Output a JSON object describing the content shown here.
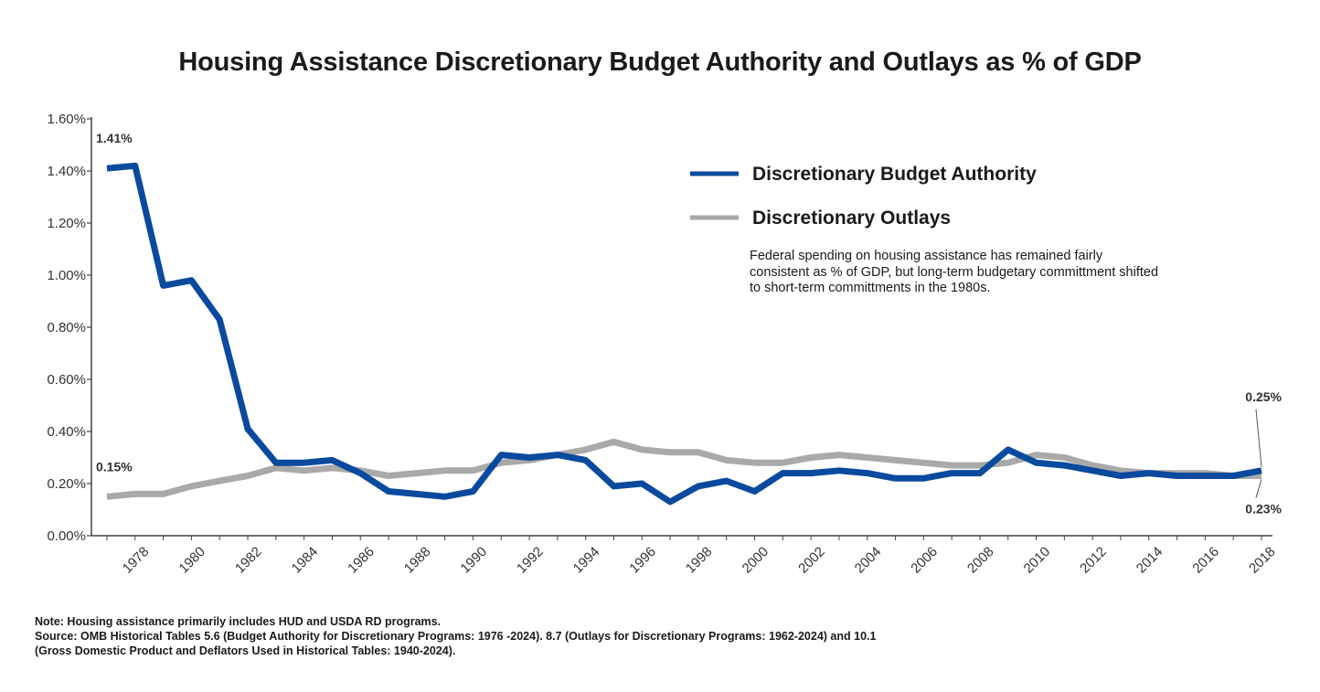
{
  "chart_data": {
    "type": "line",
    "title": "Housing Assistance Discretionary Budget Authority and Outlays as % of GDP",
    "x": [
      1977,
      1978,
      1979,
      1980,
      1981,
      1982,
      1983,
      1984,
      1985,
      1986,
      1987,
      1988,
      1989,
      1990,
      1991,
      1992,
      1993,
      1994,
      1995,
      1996,
      1997,
      1998,
      1999,
      2000,
      2001,
      2002,
      2003,
      2004,
      2005,
      2006,
      2007,
      2008,
      2009,
      2010,
      2011,
      2012,
      2013,
      2014,
      2015,
      2016,
      2017,
      2018
    ],
    "x_tick_labels": [
      "1978",
      "1980",
      "1982",
      "1984",
      "1986",
      "1988",
      "1990",
      "1992",
      "1994",
      "1996",
      "1998",
      "2000",
      "2002",
      "2004",
      "2006",
      "2008",
      "2010",
      "2012",
      "2014",
      "2016",
      "2018"
    ],
    "y_tick_labels": [
      "0.00%",
      "0.20%",
      "0.40%",
      "0.60%",
      "0.80%",
      "1.00%",
      "1.20%",
      "1.40%",
      "1.60%"
    ],
    "ylim": [
      0,
      1.6
    ],
    "series": [
      {
        "name": "Discretionary Budget Authority",
        "color": "#0a4a9e",
        "values": [
          1.41,
          1.42,
          0.96,
          0.98,
          0.83,
          0.41,
          0.28,
          0.28,
          0.29,
          0.24,
          0.17,
          0.16,
          0.15,
          0.17,
          0.31,
          0.3,
          0.31,
          0.29,
          0.19,
          0.2,
          0.13,
          0.19,
          0.21,
          0.17,
          0.24,
          0.24,
          0.25,
          0.24,
          0.22,
          0.22,
          0.24,
          0.24,
          0.33,
          0.28,
          0.27,
          0.25,
          0.23,
          0.24,
          0.23,
          0.23,
          0.23,
          0.25
        ]
      },
      {
        "name": "Discretionary Outlays",
        "color": "#a9a9a9",
        "values": [
          0.15,
          0.16,
          0.16,
          0.19,
          0.21,
          0.23,
          0.26,
          0.25,
          0.26,
          0.25,
          0.23,
          0.24,
          0.25,
          0.25,
          0.28,
          0.29,
          0.31,
          0.33,
          0.36,
          0.33,
          0.32,
          0.32,
          0.29,
          0.28,
          0.28,
          0.3,
          0.31,
          0.3,
          0.29,
          0.28,
          0.27,
          0.27,
          0.28,
          0.31,
          0.3,
          0.27,
          0.25,
          0.24,
          0.24,
          0.24,
          0.23,
          0.23
        ]
      }
    ],
    "data_labels": [
      {
        "text": "1.41%",
        "series": 0,
        "index": 0,
        "placement": "above"
      },
      {
        "text": "0.15%",
        "series": 1,
        "index": 0,
        "placement": "above"
      },
      {
        "text": "0.25%",
        "series": 0,
        "index": 41,
        "placement": "above"
      },
      {
        "text": "0.23%",
        "series": 1,
        "index": 41,
        "placement": "below"
      }
    ],
    "legend": "top-right",
    "grid": false
  },
  "annotation": "Federal spending on housing assistance has remained fairly consistent as % of GDP, but long-term budgetary committment shifted to short-term committments in the 1980s.",
  "notes": {
    "note": "Note: Housing assistance primarily includes HUD and USDA RD programs.",
    "source_line1": "Source: OMB Historical Tables 5.6 (Budget Authority for Discretionary Programs: 1976 -2024). 8.7 (Outlays for Discretionary Programs: 1962-2024) and 10.1",
    "source_line2": "(Gross Domestic Product and Deflators Used in Historical Tables: 1940-2024)."
  }
}
